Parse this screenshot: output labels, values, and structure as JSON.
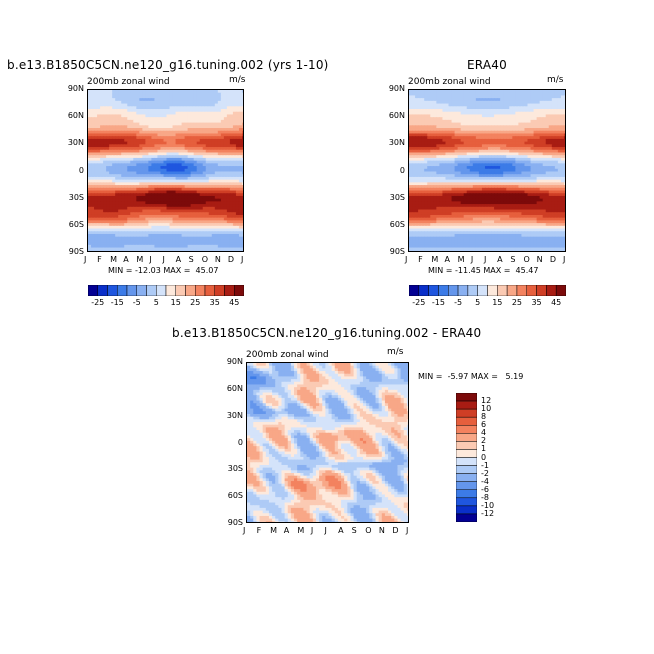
{
  "chart_data": [
    {
      "type": "heatmap",
      "title": "b.e13.B1850C5CN.ne120_g16.tuning.002 (yrs 1-10)",
      "left_label": "200mb zonal wind",
      "right_label": "m/s",
      "x_ticks": [
        "J",
        "F",
        "M",
        "A",
        "M",
        "J",
        "J",
        "A",
        "S",
        "O",
        "N",
        "D",
        "J"
      ],
      "y_ticks": [
        "90N",
        "60N",
        "30N",
        "0",
        "30S",
        "60S",
        "90S"
      ],
      "ylim": [
        -90,
        90
      ],
      "stats": "MIN = -12.03 MAX =  45.07",
      "colorbar": {
        "orientation": "horizontal",
        "labels": [
          "-25",
          "-15",
          "-5",
          "5",
          "15",
          "25",
          "35",
          "45"
        ]
      },
      "features": [
        {
          "feature": "NH subtropical jet, winter max",
          "lat": 32,
          "month": 1.5,
          "value": 40
        },
        {
          "feature": "NH subtropical jet, December",
          "lat": 32,
          "month": 12.0,
          "value": 34
        },
        {
          "feature": "SH jet, austral winter max",
          "lat": -28,
          "month": 7.5,
          "value": 45
        },
        {
          "feature": "SH midlatitude jet",
          "lat": -45,
          "month": 1.0,
          "value": 30
        },
        {
          "feature": "Tropical easterlies min",
          "lat": 5,
          "month": 7.3,
          "value": -12
        }
      ]
    },
    {
      "type": "heatmap",
      "title": "ERA40",
      "left_label": "200mb zonal wind",
      "right_label": "m/s",
      "x_ticks": [
        "J",
        "F",
        "M",
        "A",
        "M",
        "J",
        "J",
        "A",
        "S",
        "O",
        "N",
        "D",
        "J"
      ],
      "y_ticks": [
        "90N",
        "60N",
        "30N",
        "0",
        "30S",
        "60S",
        "90S"
      ],
      "ylim": [
        -90,
        90
      ],
      "stats": "MIN = -11.45 MAX =  45.47",
      "colorbar": {
        "orientation": "horizontal",
        "labels": [
          "-25",
          "-15",
          "-5",
          "5",
          "15",
          "25",
          "35",
          "45"
        ]
      },
      "features": [
        {
          "feature": "NH subtropical jet, winter max",
          "lat": 32,
          "month": 1.5,
          "value": 40
        },
        {
          "feature": "NH subtropical jet, December",
          "lat": 32,
          "month": 12.0,
          "value": 34
        },
        {
          "feature": "SH jet, austral winter max",
          "lat": -28,
          "month": 7.5,
          "value": 45
        },
        {
          "feature": "SH midlatitude jet",
          "lat": -45,
          "month": 1.0,
          "value": 30
        },
        {
          "feature": "Tropical easterlies min",
          "lat": 5,
          "month": 7.3,
          "value": -11
        }
      ]
    },
    {
      "type": "heatmap",
      "title": "b.e13.B1850C5CN.ne120_g16.tuning.002 - ERA40",
      "left_label": "200mb zonal wind",
      "right_label": "m/s",
      "x_ticks": [
        "J",
        "F",
        "M",
        "A",
        "M",
        "J",
        "J",
        "A",
        "S",
        "O",
        "N",
        "D",
        "J"
      ],
      "y_ticks": [
        "90N",
        "60N",
        "30N",
        "0",
        "30S",
        "60S",
        "90S"
      ],
      "ylim": [
        -90,
        90
      ],
      "stats": "MIN =  -5.97 MAX =   5.19",
      "colorbar": {
        "orientation": "vertical",
        "labels": [
          "12",
          "10",
          "8",
          "6",
          "4",
          "2",
          "1",
          "0",
          "-1",
          "-2",
          "-4",
          "-6",
          "-8",
          "-10",
          "-12"
        ]
      },
      "features": [
        {
          "feature": "positive difference",
          "lat": 8,
          "month": 7.5,
          "value": 5
        },
        {
          "feature": "negative difference",
          "lat": 35,
          "month": 3.5,
          "value": -5
        },
        {
          "feature": "negative difference",
          "lat": 72,
          "month": 1.5,
          "value": -4
        },
        {
          "feature": "positive difference",
          "lat": -45,
          "month": 5.0,
          "value": 4
        }
      ]
    }
  ],
  "palettes": {
    "wind": [
      "#030093",
      "#0a2fc9",
      "#1f56df",
      "#3c7be7",
      "#6496ec",
      "#89b0f1",
      "#aecbf6",
      "#d4e3fa",
      "#fde9dc",
      "#fbcab3",
      "#f8a787",
      "#f3825f",
      "#e65f3d",
      "#cf3e25",
      "#a81c13",
      "#7c0a0a"
    ],
    "diff": [
      "#7c0a0a",
      "#a81c13",
      "#cf3e25",
      "#e65f3d",
      "#f3825f",
      "#f8a787",
      "#fbcab3",
      "#fde9dc",
      "#d4e3fa",
      "#aecbf6",
      "#89b0f1",
      "#6496ec",
      "#3c7be7",
      "#1f56df",
      "#0a2fc9",
      "#030093"
    ]
  }
}
